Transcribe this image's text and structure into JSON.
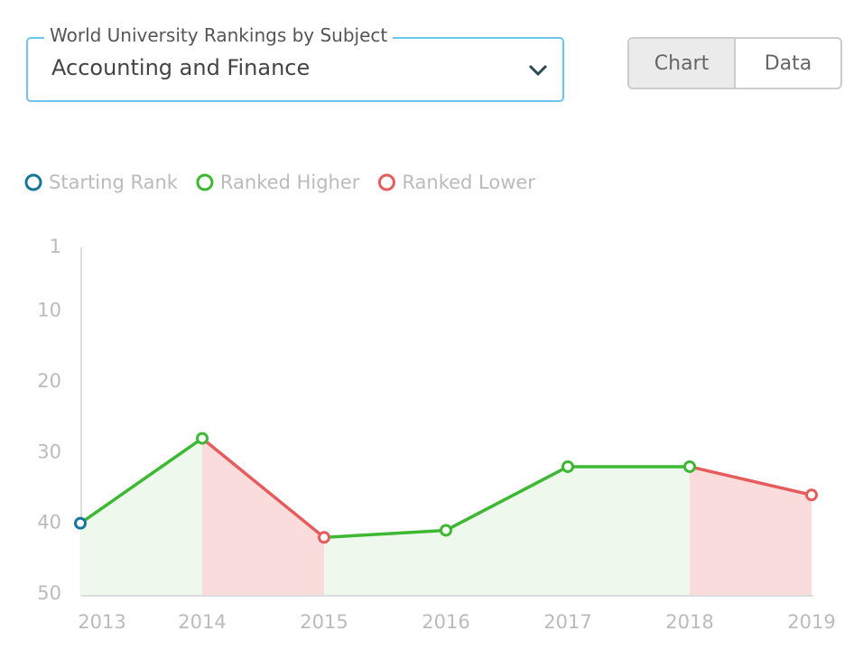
{
  "dropdown": {
    "label": "World University Rankings by Subject",
    "value": "Accounting and Finance"
  },
  "toggle": {
    "options": [
      "Chart",
      "Data"
    ],
    "selected": 0
  },
  "chart_data": {
    "type": "line",
    "legend": [
      {
        "name": "Starting Rank",
        "color": "#17779b"
      },
      {
        "name": "Ranked Higher",
        "color": "#3db832"
      },
      {
        "name": "Ranked Lower",
        "color": "#e65c5c"
      }
    ],
    "categories": [
      "2013",
      "2014",
      "2015",
      "2016",
      "2017",
      "2018",
      "2019"
    ],
    "values": [
      40,
      28,
      42,
      41,
      32,
      32,
      36
    ],
    "ylim": [
      1,
      50
    ],
    "y_inverted": true,
    "yticks": [
      1,
      10,
      20,
      30,
      40,
      50
    ]
  }
}
